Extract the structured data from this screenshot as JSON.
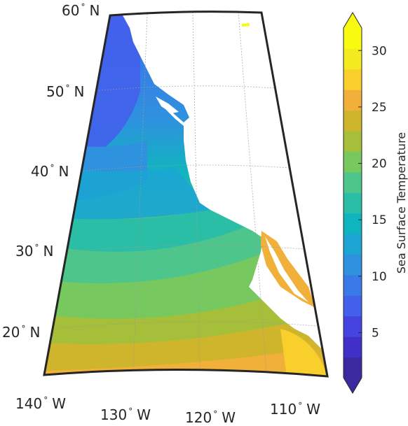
{
  "map": {
    "lat_labels": [
      {
        "deg": "60",
        "hemi": "N"
      },
      {
        "deg": "50",
        "hemi": "N"
      },
      {
        "deg": "40",
        "hemi": "N"
      },
      {
        "deg": "30",
        "hemi": "N"
      },
      {
        "deg": "20",
        "hemi": "N"
      }
    ],
    "lon_labels": [
      {
        "deg": "140",
        "hemi": "W"
      },
      {
        "deg": "130",
        "hemi": "W"
      },
      {
        "deg": "120",
        "hemi": "W"
      },
      {
        "deg": "110",
        "hemi": "W"
      }
    ],
    "grid": true
  },
  "colorbar": {
    "title": "Sea Surface Temperature",
    "ticks": [
      "5",
      "10",
      "15",
      "20",
      "25",
      "30"
    ],
    "colors": [
      "#3a2aa0",
      "#4130c8",
      "#4544e0",
      "#4360ec",
      "#3a7ae8",
      "#2e92de",
      "#1ca5d2",
      "#0fb5be",
      "#2bbea6",
      "#4ec58a",
      "#78c860",
      "#a6bf3a",
      "#cfb52c",
      "#f0b03a",
      "#f9cf2c",
      "#f3ea20",
      "#f8fa10"
    ]
  }
}
